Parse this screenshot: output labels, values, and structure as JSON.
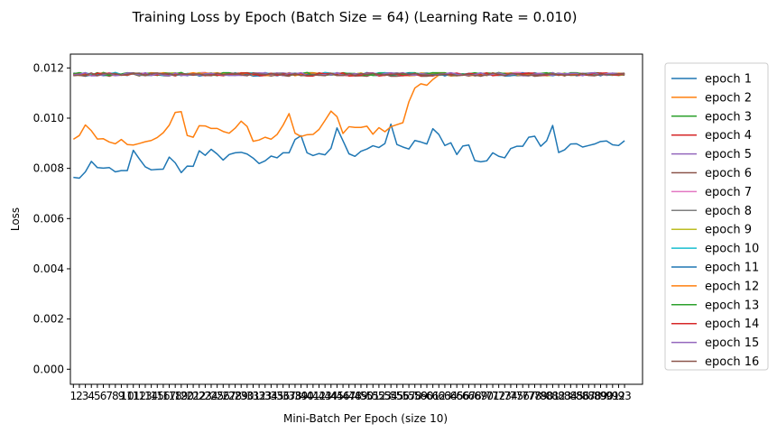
{
  "chart_data": {
    "type": "line",
    "title": "Training Loss by Epoch (Batch Size = 64) (Learning Rate = 0.010)",
    "xlabel": "Mini-Batch Per Epoch (size 10)",
    "ylabel": "Loss",
    "xlim": [
      0.5,
      96
    ],
    "ylim": [
      -0.0006,
      0.01255
    ],
    "y_ticks": [
      0.0,
      0.002,
      0.004,
      0.006,
      0.008,
      0.01,
      0.012
    ],
    "y_tick_labels": [
      "0.000",
      "0.002",
      "0.004",
      "0.006",
      "0.008",
      "0.010",
      "0.012"
    ],
    "x_ticks": [
      1,
      2,
      3,
      4,
      5,
      6,
      7,
      8,
      9,
      10,
      11,
      12,
      13,
      14,
      15,
      16,
      17,
      18,
      19,
      20,
      21,
      22,
      23,
      24,
      25,
      26,
      27,
      28,
      29,
      30,
      31,
      32,
      33,
      34,
      35,
      36,
      37,
      38,
      39,
      40,
      41,
      42,
      43,
      44,
      45,
      46,
      47,
      48,
      49,
      50,
      51,
      52,
      53,
      54,
      55,
      56,
      57,
      58,
      59,
      60,
      61,
      62,
      63,
      64,
      65,
      66,
      67,
      68,
      69,
      70,
      71,
      72,
      73,
      74,
      75,
      76,
      77,
      78,
      79,
      80,
      81,
      82,
      83,
      84,
      85,
      86,
      87,
      88,
      89,
      90,
      91,
      92,
      93
    ],
    "grid": false,
    "legend_position": "right-outside",
    "series": [
      {
        "name": "epoch 1",
        "color": "#1f77b4",
        "values": [
          0.00764,
          0.00761,
          0.00786,
          0.00828,
          0.00803,
          0.00801,
          0.00803,
          0.00786,
          0.00791,
          0.00791,
          0.00872,
          0.00838,
          0.00806,
          0.00794,
          0.00796,
          0.00797,
          0.00845,
          0.00822,
          0.00783,
          0.00809,
          0.00808,
          0.0087,
          0.00852,
          0.00876,
          0.00857,
          0.00833,
          0.00855,
          0.00862,
          0.00864,
          0.00857,
          0.00841,
          0.00819,
          0.0083,
          0.00849,
          0.00842,
          0.00862,
          0.00862,
          0.00915,
          0.0093,
          0.00862,
          0.00851,
          0.00859,
          0.00854,
          0.0088,
          0.00961,
          0.0091,
          0.00858,
          0.00848,
          0.00868,
          0.00877,
          0.0089,
          0.00883,
          0.00899,
          0.00976,
          0.00895,
          0.00885,
          0.00877,
          0.00911,
          0.00905,
          0.00897,
          0.00958,
          0.00935,
          0.00891,
          0.00902,
          0.00855,
          0.00889,
          0.00893,
          0.00831,
          0.00826,
          0.0083,
          0.00862,
          0.00848,
          0.00842,
          0.00879,
          0.00888,
          0.00888,
          0.00924,
          0.00928,
          0.00888,
          0.0091,
          0.00971,
          0.00863,
          0.00874,
          0.00897,
          0.00898,
          0.00885,
          0.00891,
          0.00897,
          0.00907,
          0.00909,
          0.00894,
          0.00891,
          0.0091
        ]
      },
      {
        "name": "epoch 2",
        "color": "#ff7f0e",
        "values": [
          0.00916,
          0.00931,
          0.00973,
          0.0095,
          0.00917,
          0.00918,
          0.00905,
          0.00898,
          0.00915,
          0.00895,
          0.00893,
          0.00899,
          0.00906,
          0.00911,
          0.00923,
          0.00942,
          0.00972,
          0.01023,
          0.01026,
          0.00931,
          0.00924,
          0.0097,
          0.00969,
          0.00959,
          0.00959,
          0.00947,
          0.0094,
          0.0096,
          0.00988,
          0.00967,
          0.00908,
          0.00913,
          0.00924,
          0.00916,
          0.00935,
          0.00972,
          0.01018,
          0.0094,
          0.00927,
          0.00934,
          0.00935,
          0.00955,
          0.00991,
          0.01028,
          0.01006,
          0.00939,
          0.00966,
          0.00963,
          0.00963,
          0.00968,
          0.00936,
          0.00962,
          0.00946,
          0.00966,
          0.00974,
          0.00982,
          0.01065,
          0.0112,
          0.01137,
          0.01131,
          0.01154,
          0.01172,
          0.01175,
          0.01176,
          0.0117,
          0.01173,
          0.01172,
          0.01175,
          0.01176,
          0.01173,
          0.01172,
          0.01174,
          0.01177,
          0.01171,
          0.01174,
          0.01175,
          0.01172,
          0.01174,
          0.01176,
          0.01172,
          0.01175,
          0.01173,
          0.01172,
          0.01176,
          0.01174,
          0.01172,
          0.01175,
          0.01173,
          0.01176,
          0.01172,
          0.01174,
          0.01175,
          0.01173
        ]
      },
      {
        "name": "epoch 3",
        "color": "#2ca02c",
        "base": 0.01176,
        "seed": 3
      },
      {
        "name": "epoch 4",
        "color": "#d62728",
        "base": 0.01174,
        "seed": 4
      },
      {
        "name": "epoch 5",
        "color": "#9467bd",
        "base": 0.01175,
        "seed": 5
      },
      {
        "name": "epoch 6",
        "color": "#8c564b",
        "base": 0.01173,
        "seed": 6
      },
      {
        "name": "epoch 7",
        "color": "#e377c2",
        "base": 0.01176,
        "seed": 7
      },
      {
        "name": "epoch 8",
        "color": "#7f7f7f",
        "base": 0.01174,
        "seed": 8
      },
      {
        "name": "epoch 9",
        "color": "#bcbd22",
        "base": 0.01175,
        "seed": 9
      },
      {
        "name": "epoch 10",
        "color": "#17becf",
        "base": 0.01176,
        "seed": 10
      },
      {
        "name": "epoch 11",
        "color": "#1f77b4",
        "base": 0.01174,
        "seed": 11
      },
      {
        "name": "epoch 12",
        "color": "#ff7f0e",
        "base": 0.01175,
        "seed": 12
      },
      {
        "name": "epoch 13",
        "color": "#2ca02c",
        "base": 0.01176,
        "seed": 13
      },
      {
        "name": "epoch 14",
        "color": "#d62728",
        "base": 0.01174,
        "seed": 14
      },
      {
        "name": "epoch 15",
        "color": "#9467bd",
        "base": 0.01175,
        "seed": 15
      },
      {
        "name": "epoch 16",
        "color": "#8c564b",
        "base": 0.01174,
        "seed": 16
      }
    ]
  }
}
